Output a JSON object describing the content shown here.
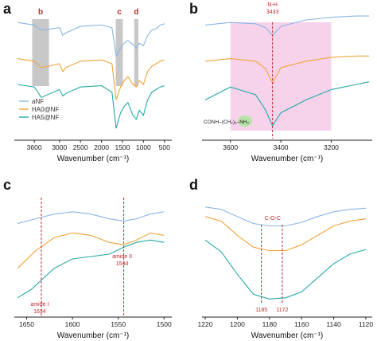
{
  "colors": {
    "aNF": "#8bb6e6",
    "HA0@NF": "#f0a43a",
    "HA5@NF": "#24a9a6",
    "annotation": "#c0282d",
    "gray_band": "#c8c8c8",
    "pink_band": "#f6d3ea"
  },
  "chart_data": [
    {
      "panel": "a",
      "type": "line",
      "xlabel": "Wavenumber (cm⁻¹)",
      "xlim": [
        4000,
        400
      ],
      "x_reversed": true,
      "xticks": [
        3600,
        3000,
        2500,
        2000,
        1500,
        1000,
        500
      ],
      "legend": {
        "placement": "bottom-left",
        "entries": [
          "aNF",
          "HA0@NF",
          "HA5@NF"
        ]
      },
      "shaded_regions": [
        {
          "label": "b",
          "from": 3650,
          "to": 3250
        },
        {
          "label": "c",
          "from": 1660,
          "to": 1490
        },
        {
          "label": "d",
          "from": 1220,
          "to": 1120
        }
      ],
      "series": [
        {
          "name": "aNF",
          "x": [
            4000,
            3600,
            3433,
            3000,
            2920,
            2850,
            2500,
            2000,
            1750,
            1650,
            1544,
            1460,
            1370,
            1250,
            1172,
            1100,
            1000,
            900,
            800,
            700,
            600,
            500
          ],
          "y": [
            0.9,
            0.88,
            0.84,
            0.86,
            0.8,
            0.82,
            0.87,
            0.88,
            0.86,
            0.64,
            0.7,
            0.74,
            0.76,
            0.73,
            0.7,
            0.74,
            0.72,
            0.8,
            0.84,
            0.85,
            0.88,
            0.89
          ]
        },
        {
          "name": "HA0@NF",
          "x": [
            4000,
            3600,
            3433,
            3000,
            2920,
            2850,
            2500,
            2000,
            1750,
            1650,
            1544,
            1460,
            1370,
            1250,
            1172,
            1100,
            1000,
            900,
            800,
            700,
            600,
            500
          ],
          "y": [
            0.62,
            0.6,
            0.55,
            0.58,
            0.52,
            0.55,
            0.6,
            0.61,
            0.58,
            0.3,
            0.4,
            0.45,
            0.48,
            0.42,
            0.4,
            0.45,
            0.42,
            0.52,
            0.56,
            0.58,
            0.6,
            0.61
          ]
        },
        {
          "name": "HA5@NF",
          "x": [
            4000,
            3600,
            3433,
            3000,
            2920,
            2850,
            2500,
            2000,
            1750,
            1650,
            1544,
            1460,
            1370,
            1250,
            1172,
            1100,
            1000,
            900,
            800,
            700,
            600,
            500
          ],
          "y": [
            0.42,
            0.4,
            0.32,
            0.38,
            0.33,
            0.35,
            0.4,
            0.41,
            0.36,
            0.08,
            0.2,
            0.25,
            0.28,
            0.18,
            0.15,
            0.22,
            0.18,
            0.3,
            0.36,
            0.38,
            0.4,
            0.41
          ]
        }
      ]
    },
    {
      "panel": "b",
      "type": "line",
      "xlabel": "Wavenumber (cm⁻¹)",
      "xlim": [
        3700,
        3050
      ],
      "x_reversed": true,
      "xticks": [
        3600,
        3400,
        3200
      ],
      "shaded_regions": [
        {
          "from": 3600,
          "to": 3200
        }
      ],
      "annotations": [
        {
          "text": "N-H",
          "value": "3433",
          "x": 3433
        }
      ],
      "inset_label": "CONH–(CH₂)₆–NH₂",
      "series": [
        {
          "name": "aNF",
          "x": [
            3700,
            3600,
            3500,
            3460,
            3433,
            3400,
            3300,
            3200,
            3100,
            3050
          ],
          "y": [
            0.88,
            0.9,
            0.89,
            0.86,
            0.8,
            0.87,
            0.92,
            0.94,
            0.95,
            0.95
          ]
        },
        {
          "name": "HA0@NF",
          "x": [
            3700,
            3600,
            3500,
            3460,
            3433,
            3400,
            3300,
            3200,
            3100,
            3050
          ],
          "y": [
            0.6,
            0.62,
            0.6,
            0.54,
            0.43,
            0.55,
            0.6,
            0.63,
            0.64,
            0.64
          ]
        },
        {
          "name": "HA5@NF",
          "x": [
            3700,
            3600,
            3500,
            3460,
            3433,
            3400,
            3300,
            3200,
            3100,
            3050
          ],
          "y": [
            0.3,
            0.4,
            0.34,
            0.22,
            0.1,
            0.2,
            0.3,
            0.38,
            0.42,
            0.44
          ]
        }
      ]
    },
    {
      "panel": "c",
      "type": "line",
      "xlabel": "Wavenumber (cm⁻¹)",
      "xlim": [
        1660,
        1495
      ],
      "x_reversed": true,
      "xticks": [
        1650,
        1600,
        1550,
        1500
      ],
      "annotations": [
        {
          "text": "amide I",
          "value": "1634",
          "x": 1634
        },
        {
          "text": "amide II",
          "value": "1544",
          "x": 1544
        }
      ],
      "series": [
        {
          "name": "aNF",
          "x": [
            1660,
            1640,
            1620,
            1600,
            1580,
            1560,
            1544,
            1530,
            1515,
            1500
          ],
          "y": [
            0.78,
            0.82,
            0.86,
            0.88,
            0.86,
            0.82,
            0.8,
            0.82,
            0.86,
            0.88
          ]
        },
        {
          "name": "HA0@NF",
          "x": [
            1660,
            1640,
            1620,
            1600,
            1580,
            1560,
            1544,
            1530,
            1515,
            1500
          ],
          "y": [
            0.4,
            0.55,
            0.66,
            0.7,
            0.68,
            0.62,
            0.6,
            0.64,
            0.7,
            0.68
          ]
        },
        {
          "name": "HA5@NF",
          "x": [
            1660,
            1645,
            1634,
            1620,
            1600,
            1580,
            1560,
            1544,
            1530,
            1515,
            1500
          ],
          "y": [
            0.15,
            0.22,
            0.3,
            0.4,
            0.48,
            0.5,
            0.52,
            0.58,
            0.62,
            0.64,
            0.62
          ]
        }
      ]
    },
    {
      "panel": "d",
      "type": "line",
      "xlabel": "Wavenumber (cm⁻¹)",
      "xlim": [
        1220,
        1118
      ],
      "x_reversed": true,
      "xticks": [
        1220,
        1200,
        1180,
        1160,
        1140,
        1120
      ],
      "annotations": [
        {
          "text": "C-O-C",
          "x": 1178
        },
        {
          "text": "1185",
          "x": 1185
        },
        {
          "text": "1172",
          "x": 1172
        }
      ],
      "series": [
        {
          "name": "aNF",
          "x": [
            1220,
            1210,
            1200,
            1190,
            1180,
            1170,
            1160,
            1150,
            1140,
            1130,
            1120
          ],
          "y": [
            0.92,
            0.9,
            0.84,
            0.78,
            0.76,
            0.76,
            0.79,
            0.84,
            0.88,
            0.9,
            0.91
          ]
        },
        {
          "name": "HA0@NF",
          "x": [
            1220,
            1210,
            1200,
            1190,
            1180,
            1170,
            1160,
            1150,
            1140,
            1130,
            1120
          ],
          "y": [
            0.84,
            0.8,
            0.68,
            0.58,
            0.55,
            0.55,
            0.6,
            0.68,
            0.76,
            0.8,
            0.82
          ]
        },
        {
          "name": "HA5@NF",
          "x": [
            1220,
            1210,
            1200,
            1190,
            1180,
            1170,
            1160,
            1150,
            1140,
            1130,
            1120
          ],
          "y": [
            0.64,
            0.54,
            0.35,
            0.18,
            0.14,
            0.15,
            0.2,
            0.32,
            0.44,
            0.52,
            0.56
          ]
        }
      ]
    }
  ]
}
